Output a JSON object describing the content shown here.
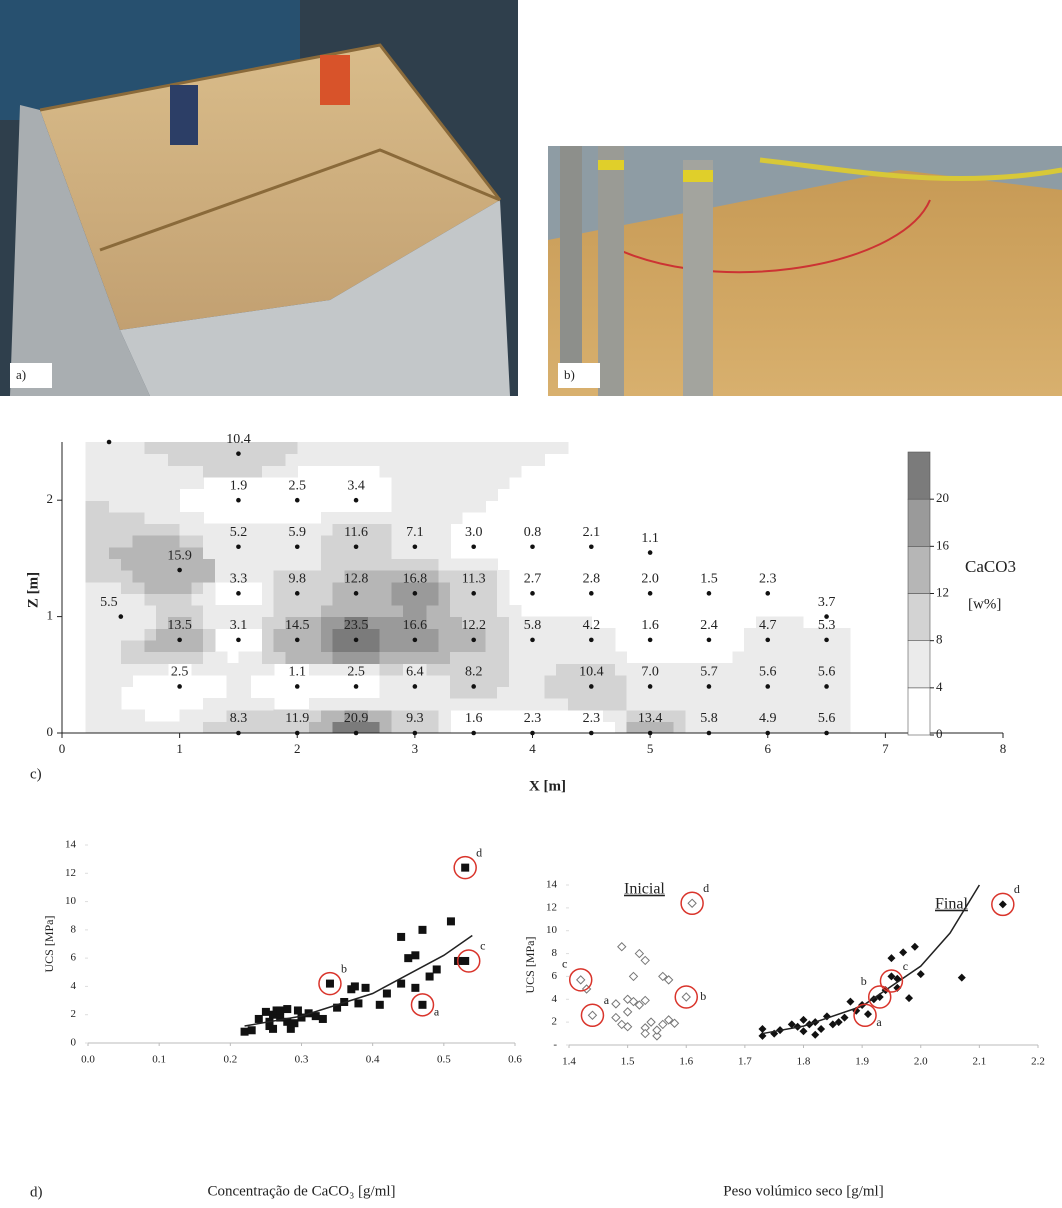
{
  "photos": [
    {
      "label": "a)"
    },
    {
      "label": "b)"
    }
  ],
  "chart_data": [
    {
      "type": "contour",
      "panel_label": "c)",
      "xlabel": "X [m]",
      "ylabel": "Z [m]",
      "xlim": [
        0,
        8
      ],
      "ylim": [
        0,
        2.5
      ],
      "xticks": [
        0,
        1,
        2,
        3,
        4,
        5,
        6,
        7,
        8
      ],
      "yticks": [
        0,
        1,
        2
      ],
      "colorbar_label": "CaCO3",
      "colorbar_unit": "[w%]",
      "clim": [
        0,
        24
      ],
      "levels": [
        0,
        4,
        8,
        12,
        16,
        20
      ],
      "level_colors": [
        "#ffffff",
        "#ebebeb",
        "#d3d3d3",
        "#b6b6b6",
        "#9a9a9a",
        "#7b7b7b"
      ],
      "points": [
        {
          "x": 0.4,
          "z": 2.5,
          "value": null
        },
        {
          "x": 1.5,
          "z": 2.4,
          "value": 10.4
        },
        {
          "x": 1.5,
          "z": 2,
          "value": 1.9
        },
        {
          "x": 2,
          "z": 2,
          "value": 2.5
        },
        {
          "x": 2.5,
          "z": 2,
          "value": 3.4
        },
        {
          "x": 1.5,
          "z": 1.6,
          "value": 5.2
        },
        {
          "x": 2,
          "z": 1.6,
          "value": 5.9
        },
        {
          "x": 2.5,
          "z": 1.6,
          "value": 11.6
        },
        {
          "x": 3,
          "z": 1.6,
          "value": 7.1
        },
        {
          "x": 3.5,
          "z": 1.6,
          "value": 3,
          "label": "3.0"
        },
        {
          "x": 4,
          "z": 1.6,
          "value": 0.8
        },
        {
          "x": 4.5,
          "z": 1.6,
          "value": 2.1
        },
        {
          "x": 1,
          "z": 1.4,
          "value": 15.9
        },
        {
          "x": 5,
          "z": 1.55,
          "value": 1.1
        },
        {
          "x": 1.5,
          "z": 1.2,
          "value": 3.3
        },
        {
          "x": 2,
          "z": 1.2,
          "value": 9.8
        },
        {
          "x": 2.5,
          "z": 1.2,
          "value": 12.8
        },
        {
          "x": 3,
          "z": 1.2,
          "value": 16.8
        },
        {
          "x": 3.5,
          "z": 1.2,
          "value": 11.3
        },
        {
          "x": 4,
          "z": 1.2,
          "value": 2.7
        },
        {
          "x": 4.5,
          "z": 1.2,
          "value": 2.8
        },
        {
          "x": 5,
          "z": 1.2,
          "value": 2,
          "label": "2.0"
        },
        {
          "x": 5.5,
          "z": 1.2,
          "value": 1.5
        },
        {
          "x": 6,
          "z": 1.2,
          "value": 2.3
        },
        {
          "x": 0.5,
          "z": 1,
          "value": 5.5
        },
        {
          "x": 6.5,
          "z": 1,
          "value": 3.7
        },
        {
          "x": 1,
          "z": 0.8,
          "value": 13.5
        },
        {
          "x": 1.5,
          "z": 0.8,
          "value": 3.1
        },
        {
          "x": 2,
          "z": 0.8,
          "value": 14.5
        },
        {
          "x": 2.5,
          "z": 0.8,
          "value": 23.5
        },
        {
          "x": 3,
          "z": 0.8,
          "value": 16.6
        },
        {
          "x": 3.5,
          "z": 0.8,
          "value": 12.2
        },
        {
          "x": 4,
          "z": 0.8,
          "value": 5.8
        },
        {
          "x": 4.5,
          "z": 0.8,
          "value": 4.2
        },
        {
          "x": 5,
          "z": 0.8,
          "value": 1.6
        },
        {
          "x": 5.5,
          "z": 0.8,
          "value": 2.4
        },
        {
          "x": 6,
          "z": 0.8,
          "value": 4.7
        },
        {
          "x": 6.5,
          "z": 0.8,
          "value": 5.3
        },
        {
          "x": 1,
          "z": 0.4,
          "value": 2.5
        },
        {
          "x": 2,
          "z": 0.4,
          "value": 1.1
        },
        {
          "x": 2.5,
          "z": 0.4,
          "value": 2.5
        },
        {
          "x": 3,
          "z": 0.4,
          "value": 6.4
        },
        {
          "x": 3.5,
          "z": 0.4,
          "value": 8.2
        },
        {
          "x": 4.5,
          "z": 0.4,
          "value": 10.4
        },
        {
          "x": 5,
          "z": 0.4,
          "value": 7,
          "label": "7.0"
        },
        {
          "x": 5.5,
          "z": 0.4,
          "value": 5.7
        },
        {
          "x": 6,
          "z": 0.4,
          "value": 5.6
        },
        {
          "x": 6.5,
          "z": 0.4,
          "value": 5.6
        },
        {
          "x": 1.5,
          "z": 0,
          "value": 8.3
        },
        {
          "x": 2,
          "z": 0,
          "value": 11.9
        },
        {
          "x": 2.5,
          "z": 0,
          "value": 20.9
        },
        {
          "x": 3,
          "z": 0,
          "value": 9.3
        },
        {
          "x": 3.5,
          "z": 0,
          "value": 1.6
        },
        {
          "x": 4,
          "z": 0,
          "value": 2.3
        },
        {
          "x": 4.5,
          "z": 0,
          "value": 2.3
        },
        {
          "x": 5,
          "z": 0,
          "value": 13.4
        },
        {
          "x": 5.5,
          "z": 0,
          "value": 5.8
        },
        {
          "x": 6,
          "z": 0,
          "value": 4.9
        },
        {
          "x": 6.5,
          "z": 0,
          "value": 5.6
        }
      ]
    },
    {
      "type": "scatter",
      "panel_label": "d)",
      "xlabel": "Concentração de CaCO₃ [g/ml]",
      "ylabel": "UCS [MPa]",
      "xlim": [
        0,
        0.6
      ],
      "ylim": [
        0,
        14
      ],
      "xticks": [
        {
          "value": 0,
          "label": "0.0"
        },
        0.1,
        0.2,
        0.3,
        0.4,
        0.5,
        0.6
      ],
      "yticks": [
        0,
        2,
        4,
        6,
        8,
        10,
        12,
        14
      ],
      "annotation_color": "#d9342b",
      "series": [
        {
          "marker": "square",
          "color": "#111111",
          "x": [
            0.22,
            0.23,
            0.24,
            0.25,
            0.255,
            0.255,
            0.26,
            0.26,
            0.265,
            0.27,
            0.27,
            0.28,
            0.28,
            0.285,
            0.29,
            0.295,
            0.3,
            0.31,
            0.32,
            0.33,
            0.34,
            0.35,
            0.36,
            0.37,
            0.375,
            0.38,
            0.39,
            0.41,
            0.42,
            0.44,
            0.44,
            0.45,
            0.46,
            0.46,
            0.47,
            0.47,
            0.48,
            0.49,
            0.51,
            0.52,
            0.53,
            0.53
          ],
          "values": [
            0.8,
            0.9,
            1.7,
            2.2,
            1.5,
            1.2,
            1.0,
            2.0,
            2.3,
            1.8,
            2.3,
            2.4,
            1.5,
            1.0,
            1.4,
            2.3,
            1.8,
            2.1,
            1.9,
            1.7,
            4.2,
            2.5,
            2.9,
            3.8,
            4.0,
            2.8,
            3.9,
            2.7,
            3.5,
            7.5,
            4.2,
            6.0,
            6.2,
            3.9,
            8.0,
            2.7,
            4.7,
            5.2,
            8.6,
            5.8,
            12.4,
            5.8
          ],
          "trend": {
            "x": [
              0.22,
              0.3,
              0.4,
              0.5,
              0.54
            ],
            "values": [
              1.2,
              1.9,
              3.5,
              6.2,
              7.6
            ]
          }
        }
      ],
      "annotations": [
        {
          "label": "a",
          "x": 0.47,
          "y": 2.7,
          "position": "lower-right"
        },
        {
          "label": "b",
          "x": 0.34,
          "y": 4.2,
          "position": "upper-right"
        },
        {
          "label": "c",
          "x": 0.535,
          "y": 5.8,
          "position": "upper-right"
        },
        {
          "label": "d",
          "x": 0.53,
          "y": 12.4,
          "position": "upper-right"
        }
      ]
    },
    {
      "type": "scatter",
      "xlabel": "Peso volúmico seco [g/ml]",
      "ylabel": "UCS [MPa]",
      "xlim": [
        1.4,
        2.2
      ],
      "ylim": [
        0,
        14
      ],
      "xticks": [
        1.4,
        1.5,
        1.6,
        1.7,
        1.8,
        1.9,
        {
          "value": 2,
          "label": "2.0"
        },
        2.1,
        2.2
      ],
      "yticks": [
        {
          "value": 0,
          "label": "-"
        },
        2,
        4,
        6,
        8,
        10,
        12,
        14
      ],
      "annotation_color": "#d9342b",
      "series": [
        {
          "name": "Inicial",
          "marker": "diamond-open",
          "color": "#777777",
          "x": [
            1.42,
            1.43,
            1.44,
            1.48,
            1.48,
            1.49,
            1.49,
            1.5,
            1.5,
            1.5,
            1.51,
            1.51,
            1.52,
            1.52,
            1.53,
            1.53,
            1.53,
            1.53,
            1.54,
            1.55,
            1.55,
            1.56,
            1.56,
            1.57,
            1.57,
            1.58,
            1.6,
            1.61
          ],
          "values": [
            5.7,
            4.9,
            2.6,
            3.6,
            2.4,
            8.6,
            1.8,
            4.0,
            2.9,
            1.6,
            6.0,
            3.8,
            8.0,
            3.5,
            7.4,
            1.5,
            1.0,
            3.9,
            2.0,
            0.8,
            1.3,
            6.0,
            1.8,
            5.7,
            2.2,
            1.9,
            4.2,
            12.4
          ]
        },
        {
          "name": "Final",
          "marker": "diamond",
          "color": "#111111",
          "x": [
            1.73,
            1.73,
            1.75,
            1.76,
            1.78,
            1.79,
            1.8,
            1.8,
            1.81,
            1.82,
            1.82,
            1.83,
            1.84,
            1.85,
            1.86,
            1.87,
            1.88,
            1.89,
            1.9,
            1.91,
            1.92,
            1.93,
            1.94,
            1.95,
            1.95,
            1.96,
            1.96,
            1.97,
            1.98,
            1.99,
            2.0,
            2.07,
            2.14
          ],
          "values": [
            0.8,
            1.4,
            1.0,
            1.3,
            1.8,
            1.6,
            2.2,
            1.2,
            1.8,
            2.0,
            0.9,
            1.4,
            2.5,
            1.8,
            2.0,
            2.4,
            3.8,
            3.0,
            3.5,
            2.7,
            4.0,
            4.2,
            4.8,
            6.0,
            7.6,
            5.8,
            5.0,
            8.1,
            4.1,
            8.6,
            6.2,
            5.9,
            12.3
          ],
          "trend": {
            "x": [
              1.73,
              1.8,
              1.9,
              2.0,
              2.05,
              2.1
            ],
            "values": [
              1.0,
              1.65,
              3.4,
              6.9,
              9.8,
              14
            ]
          }
        }
      ],
      "annotations": [
        {
          "label": "a",
          "x": 1.44,
          "y": 2.6,
          "position": "upper-right"
        },
        {
          "label": "b",
          "x": 1.6,
          "y": 4.2,
          "position": "right"
        },
        {
          "label": "c",
          "x": 1.42,
          "y": 5.7,
          "position": "upper-left"
        },
        {
          "label": "d",
          "x": 1.61,
          "y": 12.4,
          "position": "upper-right"
        },
        {
          "label": "a",
          "x": 1.905,
          "y": 2.6,
          "position": "lower-right"
        },
        {
          "label": "b",
          "x": 1.93,
          "y": 4.2,
          "position": "upper-left"
        },
        {
          "label": "c",
          "x": 1.95,
          "y": 5.6,
          "position": "upper-right"
        },
        {
          "label": "d",
          "x": 2.14,
          "y": 12.3,
          "position": "upper-right"
        }
      ]
    }
  ]
}
